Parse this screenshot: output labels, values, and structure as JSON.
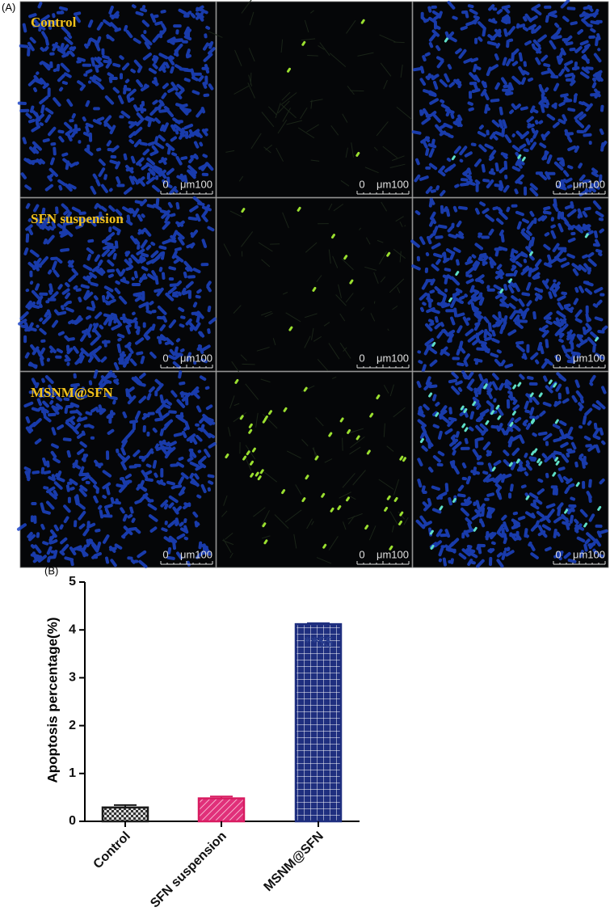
{
  "panel_a": {
    "label": "(A)",
    "rows": [
      "Control",
      "SFN suspension",
      "MSNM@SFN"
    ],
    "scale_start": "0",
    "scale_end": "μm100"
  },
  "chart_data": {
    "type": "bar",
    "panel_label": "(B)",
    "y_label": "Apoptosis percentage(%)",
    "categories": [
      "Control",
      "SFN suspension",
      "MSNM@SFN"
    ],
    "values": [
      0.29,
      0.48,
      4.12
    ],
    "errors": [
      0.05,
      0.04,
      0.02
    ],
    "colors": [
      "#1a1a1a",
      "#d81b60",
      "#1f2f7f"
    ],
    "patterns": [
      "checker",
      "hatch",
      "grid"
    ],
    "annotation": "**$$",
    "annotation_color": "#2a3f8f",
    "ylim": [
      0,
      5
    ],
    "yticks": [
      0,
      1,
      2,
      3,
      4,
      5
    ]
  }
}
